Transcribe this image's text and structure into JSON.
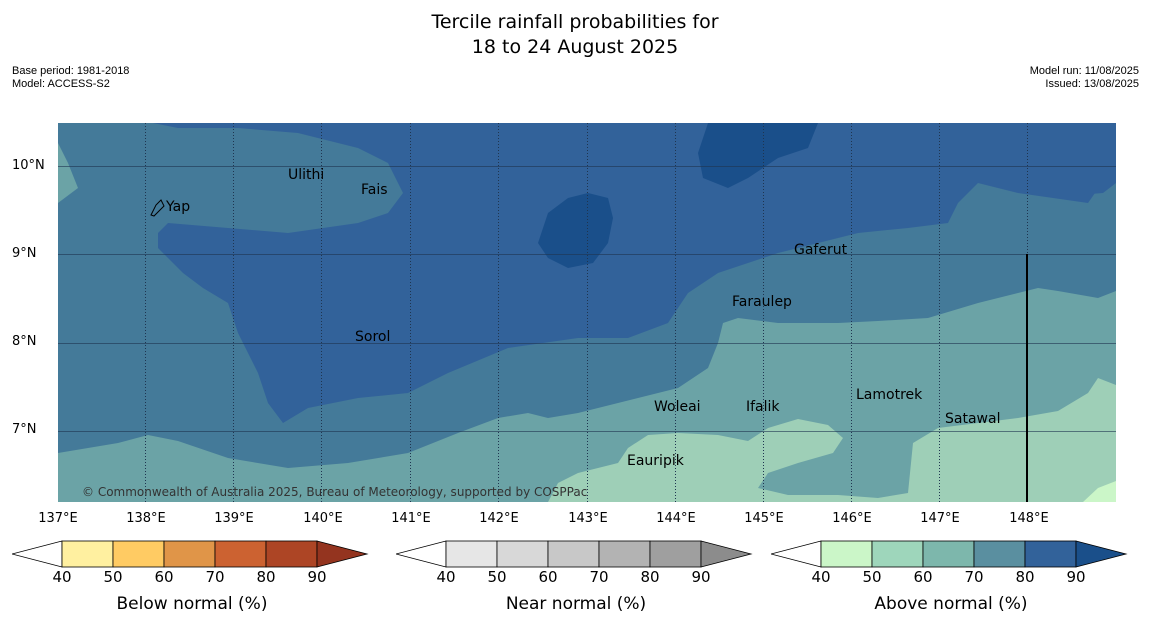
{
  "title_line1": "Tercile rainfall probabilities for",
  "title_line2": "18 to 24 August 2025",
  "meta_left": {
    "base_period": "Base period: 1981-2018",
    "model": "Model: ACCESS-S2"
  },
  "meta_right": {
    "model_run": "Model run: 11/08/2025",
    "issued": "Issued: 13/08/2025"
  },
  "map": {
    "lat_ticks": [
      "10°N",
      "9°N",
      "8°N",
      "7°N"
    ],
    "lon_ticks": [
      "137°E",
      "138°E",
      "139°E",
      "140°E",
      "141°E",
      "142°E",
      "143°E",
      "144°E",
      "145°E",
      "146°E",
      "147°E",
      "148°E"
    ],
    "places": [
      "Yap",
      "Ulithi",
      "Fais",
      "Gaferut",
      "Faraulep",
      "Sorol",
      "Woleai",
      "Ifalik",
      "Lamotrek",
      "Satawal",
      "Eauripik"
    ],
    "copyright": "© Commonwealth of Australia 2025, Bureau of Meteorology, supported by COSPPac",
    "colors": {
      "above_60_70": "#6ba3a6",
      "above_70_80": "#447a99",
      "above_80_90": "#32629a",
      "above_90": "#1a4f8a",
      "above_50_60": "#9ecfb7",
      "above_40_50": "#cbf6c8"
    }
  },
  "colorbars": [
    {
      "caption": "Below normal (%)",
      "ticks": [
        "40",
        "50",
        "60",
        "70",
        "80",
        "90"
      ],
      "colors": [
        "#ffffff",
        "#fff0a0",
        "#ffcb63",
        "#e09548",
        "#cc6231",
        "#ad4525",
        "#94341f"
      ]
    },
    {
      "caption": "Near normal (%)",
      "ticks": [
        "40",
        "50",
        "60",
        "70",
        "80",
        "90"
      ],
      "colors": [
        "#ffffff",
        "#e6e6e6",
        "#d8d8d8",
        "#c8c8c8",
        "#b3b3b3",
        "#9f9f9f",
        "#8c8c8c"
      ]
    },
    {
      "caption": "Above normal (%)",
      "ticks": [
        "40",
        "50",
        "60",
        "70",
        "80",
        "90"
      ],
      "colors": [
        "#ffffff",
        "#cbf6c8",
        "#9ed6bb",
        "#7db7ac",
        "#5a8fa0",
        "#32629a",
        "#1a4f8a"
      ]
    }
  ]
}
